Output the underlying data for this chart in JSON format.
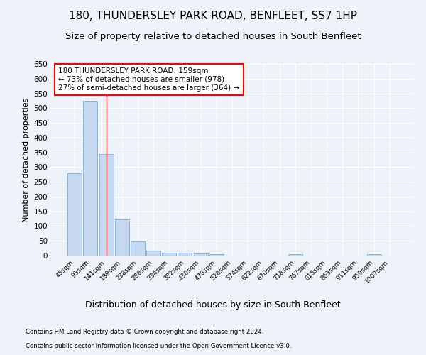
{
  "title1": "180, THUNDERSLEY PARK ROAD, BENFLEET, SS7 1HP",
  "title2": "Size of property relative to detached houses in South Benfleet",
  "xlabel": "Distribution of detached houses by size in South Benfleet",
  "ylabel": "Number of detached properties",
  "footnote1": "Contains HM Land Registry data © Crown copyright and database right 2024.",
  "footnote2": "Contains public sector information licensed under the Open Government Licence v3.0.",
  "categories": [
    "45sqm",
    "93sqm",
    "141sqm",
    "189sqm",
    "238sqm",
    "286sqm",
    "334sqm",
    "382sqm",
    "430sqm",
    "478sqm",
    "526sqm",
    "574sqm",
    "622sqm",
    "670sqm",
    "718sqm",
    "767sqm",
    "815sqm",
    "863sqm",
    "911sqm",
    "959sqm",
    "1007sqm"
  ],
  "values": [
    280,
    525,
    345,
    122,
    48,
    17,
    10,
    10,
    7,
    4,
    0,
    0,
    0,
    0,
    5,
    0,
    0,
    0,
    0,
    5,
    0
  ],
  "bar_color": "#c5d8f0",
  "bar_edge_color": "#7bafd4",
  "red_line_x": 2,
  "annotation_text": "180 THUNDERSLEY PARK ROAD: 159sqm\n← 73% of detached houses are smaller (978)\n27% of semi-detached houses are larger (364) →",
  "annotation_box_color": "white",
  "annotation_box_edge": "red",
  "ylim": [
    0,
    650
  ],
  "yticks": [
    0,
    50,
    100,
    150,
    200,
    250,
    300,
    350,
    400,
    450,
    500,
    550,
    600,
    650
  ],
  "background_color": "#eef2f9",
  "grid_color": "white",
  "title1_fontsize": 11,
  "title2_fontsize": 9.5,
  "xlabel_fontsize": 9,
  "ylabel_fontsize": 8,
  "annot_fontsize": 7.5
}
